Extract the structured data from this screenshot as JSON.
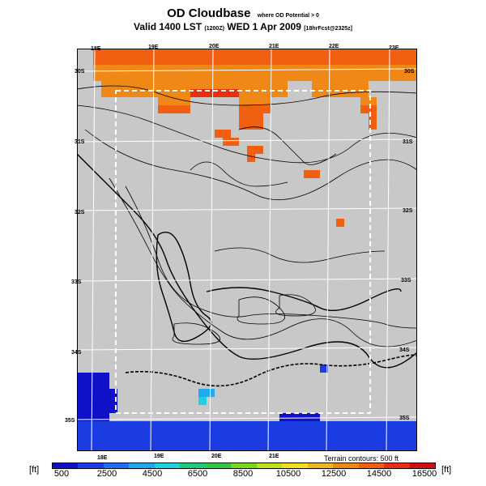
{
  "header": {
    "title": "OD Cloudbase",
    "subtitle_small": "where OD Potential > 0",
    "valid_line": "Valid 1400 LST",
    "valid_utc": "(1200Z)",
    "valid_date": "WED 1 Apr 2009",
    "forecast": "[18hrFcst@2325z]"
  },
  "map": {
    "top_lon_labels": [
      "18E",
      "19E",
      "20E",
      "21E",
      "22E",
      "23E"
    ],
    "bottom_lon_labels": [
      "18E",
      "19E",
      "20E",
      "21E"
    ],
    "left_lat_labels": [
      "30S",
      "31S",
      "32S",
      "33S",
      "34S",
      "35S"
    ],
    "right_lat_labels": [
      "30S",
      "31S",
      "32S",
      "33S",
      "34S",
      "35S"
    ],
    "land_color": "#c8c8c8",
    "grid_color": "#ffffff",
    "contour_color": "#000000",
    "boundary_box": "dashed-white"
  },
  "legend": {
    "terrain_note": "Terrain contours: 500 ft",
    "unit_left": "[ft]",
    "unit_right": "[ft]",
    "tick_labels": [
      "500",
      "2500",
      "4500",
      "6500",
      "8500",
      "10500",
      "12500",
      "14500",
      "16500"
    ],
    "colors": [
      "#1010c8",
      "#1a3ce0",
      "#1e6ef0",
      "#20a8f0",
      "#20d0e0",
      "#20c880",
      "#30c840",
      "#78d820",
      "#c0e020",
      "#f0e020",
      "#f0b820",
      "#f08818",
      "#f06010",
      "#e83010",
      "#d01010"
    ]
  }
}
